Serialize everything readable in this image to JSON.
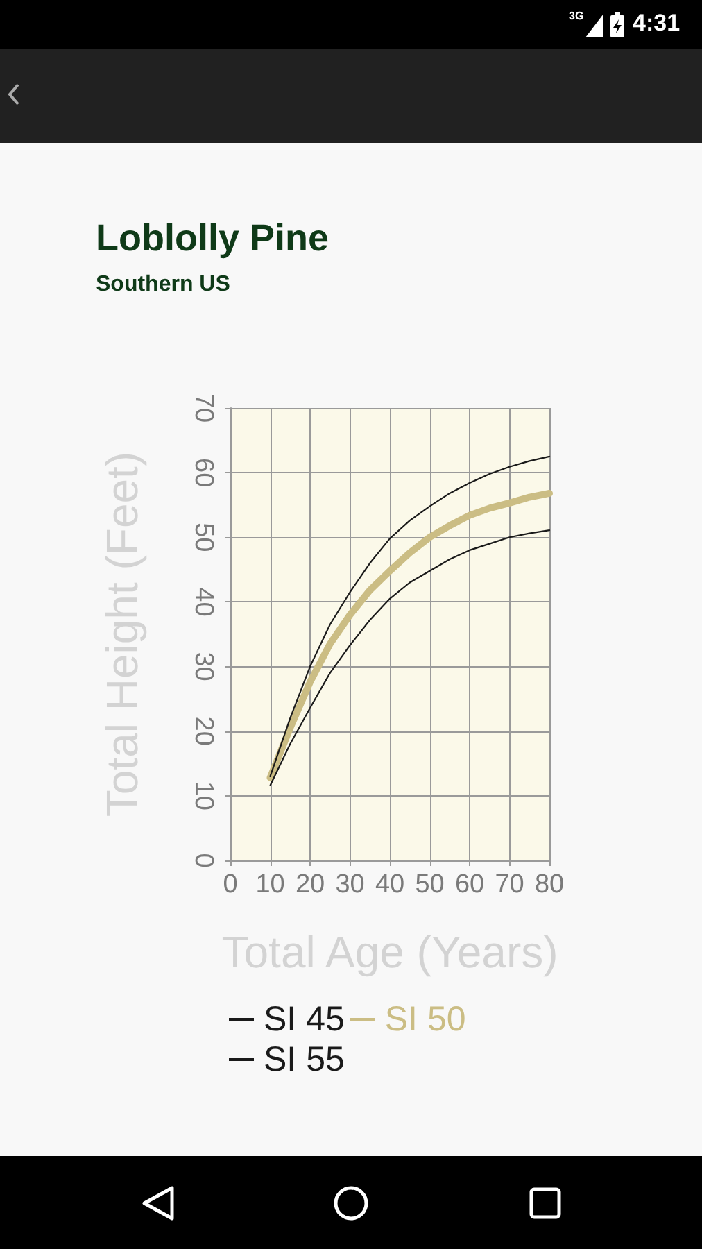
{
  "chart_data": {
    "type": "line",
    "title": "Loblolly Pine",
    "subtitle": "Southern US",
    "xlabel": "Total Age (Years)",
    "ylabel": "Total Height (Feet)",
    "x": [
      10,
      15,
      20,
      25,
      30,
      35,
      40,
      45,
      50,
      55,
      60,
      65,
      70,
      75,
      80
    ],
    "series": [
      {
        "name": "SI 45",
        "color": "#1a1a1a",
        "values": [
          11.6,
          18,
          23.6,
          29,
          33.3,
          37.2,
          40.5,
          43,
          44.8,
          46.6,
          48,
          49,
          50,
          50.6,
          51.1
        ]
      },
      {
        "name": "SI 50",
        "color": "#cbbd84",
        "values": [
          12.8,
          20.5,
          27.6,
          33.5,
          38,
          41.8,
          44.8,
          47.6,
          50,
          51.8,
          53.4,
          54.5,
          55.3,
          56.2,
          56.8
        ]
      },
      {
        "name": "SI 55",
        "color": "#1a1a1a",
        "values": [
          13,
          22,
          30,
          36.5,
          41.5,
          46,
          49.8,
          52.6,
          54.8,
          56.8,
          58.4,
          59.8,
          60.9,
          61.8,
          62.5
        ]
      }
    ],
    "xlim": [
      0,
      80
    ],
    "xticks": [
      0,
      10,
      20,
      30,
      40,
      50,
      60,
      70,
      80
    ],
    "ylim": [
      0,
      70
    ],
    "yticks": [
      0,
      10,
      20,
      30,
      40,
      50,
      60,
      70
    ],
    "grid": true,
    "legend": "bottom",
    "annotations": [
      "3G",
      "4:31"
    ]
  }
}
